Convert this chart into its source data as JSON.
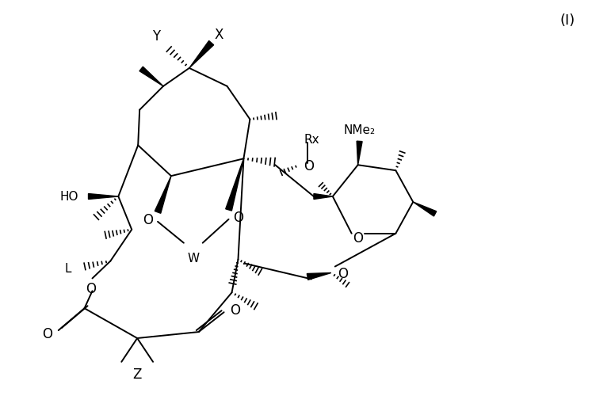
{
  "figsize": [
    7.71,
    5.0
  ],
  "dpi": 100,
  "background_color": "#ffffff",
  "label_I": "(I)",
  "label_Y": "Y",
  "label_X": "X",
  "label_HO": "HO",
  "label_L": "L",
  "label_W": "W",
  "label_Rx": "Rx",
  "label_O": "O",
  "label_NMe2": "NMe₂",
  "label_Z": "Z",
  "label_O_carb1": "O",
  "label_O_carb2": "O"
}
